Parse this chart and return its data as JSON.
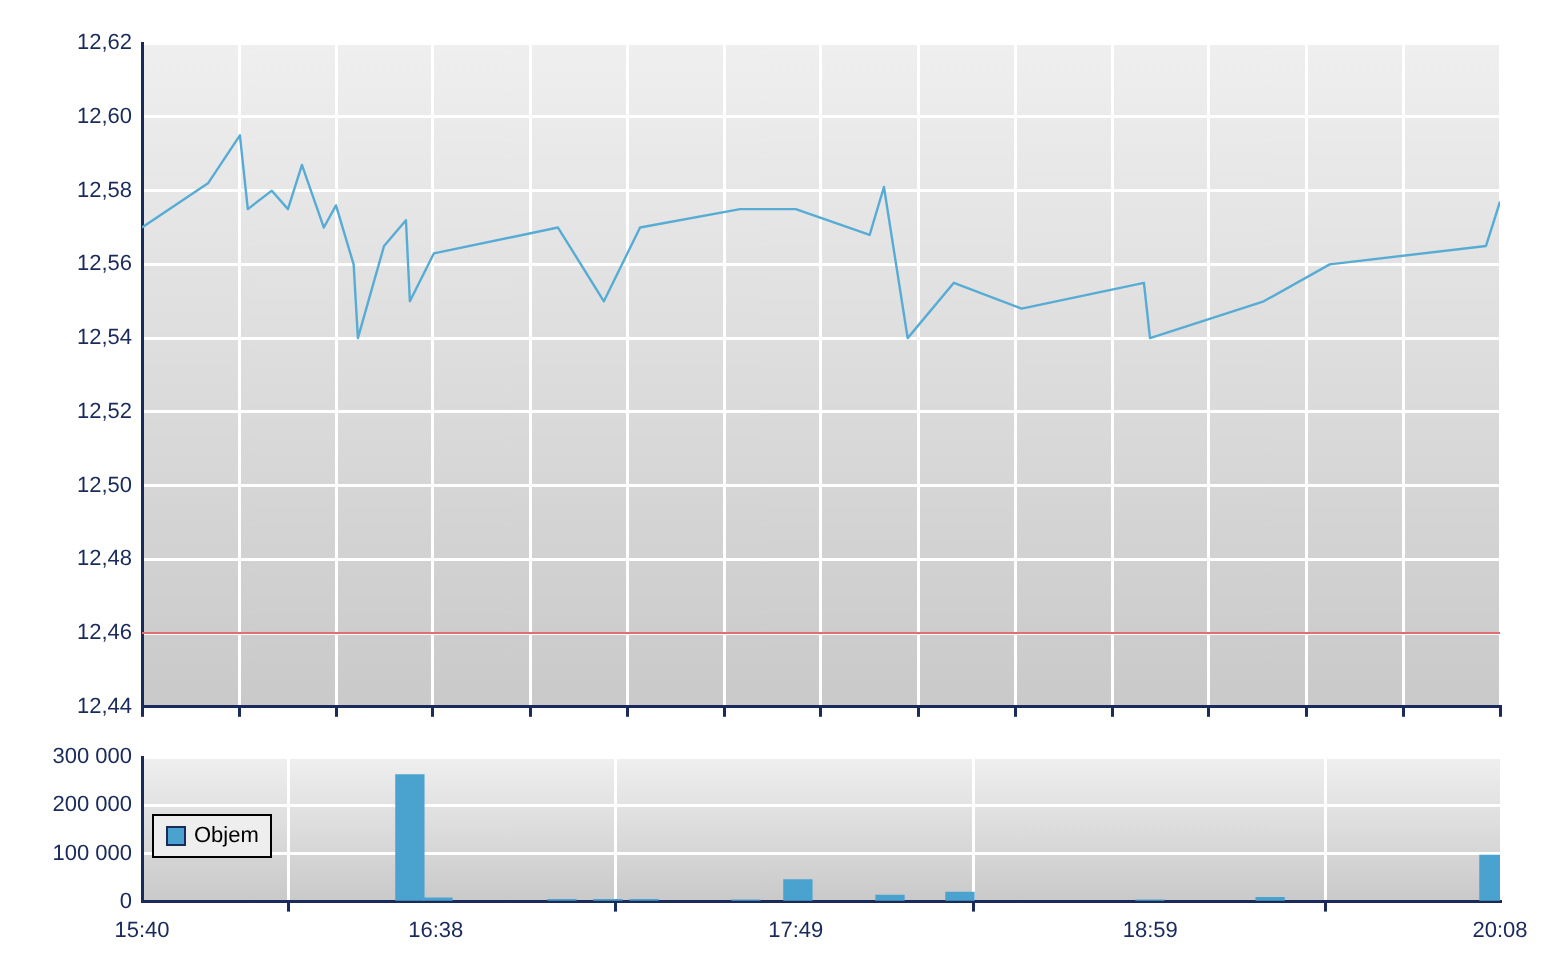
{
  "chart_data": [
    {
      "type": "line",
      "x": [
        15.667,
        15.884,
        15.989,
        16.015,
        16.094,
        16.147,
        16.193,
        16.265,
        16.305,
        16.363,
        16.377,
        16.463,
        16.535,
        16.548,
        16.627,
        17.035,
        17.186,
        17.305,
        17.634,
        17.817,
        18.06,
        18.107,
        18.185,
        18.337,
        18.56,
        18.962,
        18.982,
        19.356,
        19.573,
        20.087,
        20.133
      ],
      "series": [
        {
          "color": "#56acd4",
          "values": [
            12.57,
            12.582,
            12.595,
            12.575,
            12.58,
            12.575,
            12.587,
            12.57,
            12.576,
            12.56,
            12.54,
            12.565,
            12.572,
            12.55,
            12.563,
            12.57,
            12.55,
            12.57,
            12.575,
            12.575,
            12.568,
            12.581,
            12.54,
            12.555,
            12.548,
            12.555,
            12.54,
            12.55,
            12.56,
            12.565,
            12.577
          ]
        }
      ],
      "xlim": [
        15.667,
        20.133
      ],
      "xticks": [
        {
          "value": 15.667,
          "label": null
        },
        {
          "value": 15.986,
          "label": null
        },
        {
          "value": 16.305,
          "label": null
        },
        {
          "value": 16.624,
          "label": null
        },
        {
          "value": 16.943,
          "label": null
        },
        {
          "value": 17.262,
          "label": null
        },
        {
          "value": 17.581,
          "label": null
        },
        {
          "value": 17.9,
          "label": null
        },
        {
          "value": 18.219,
          "label": null
        },
        {
          "value": 18.538,
          "label": null
        },
        {
          "value": 18.857,
          "label": null
        },
        {
          "value": 19.176,
          "label": null
        },
        {
          "value": 19.495,
          "label": null
        },
        {
          "value": 19.814,
          "label": null
        },
        {
          "value": 20.133,
          "label": null
        }
      ],
      "ylim": [
        12.44,
        12.62
      ],
      "yticks": [
        {
          "value": 12.44,
          "label": "12,44"
        },
        {
          "value": 12.46,
          "label": "12,46"
        },
        {
          "value": 12.48,
          "label": "12,48"
        },
        {
          "value": 12.5,
          "label": "12,50"
        },
        {
          "value": 12.52,
          "label": "12,52"
        },
        {
          "value": 12.54,
          "label": "12,54"
        },
        {
          "value": 12.56,
          "label": "12,56"
        },
        {
          "value": 12.58,
          "label": "12,58"
        },
        {
          "value": 12.6,
          "label": "12,60"
        },
        {
          "value": 12.62,
          "label": "12,62"
        }
      ],
      "ref_lines": [
        {
          "axis": "y",
          "value": 12.46,
          "color": "#e07070"
        }
      ],
      "grid": true,
      "tick_labels": "y",
      "marker": "none"
    },
    {
      "type": "bar",
      "x": [
        16.548,
        16.64,
        17.048,
        17.199,
        17.318,
        17.653,
        17.824,
        18.127,
        18.357,
        18.982,
        19.377,
        20.113
      ],
      "series": [
        {
          "name": "Objem",
          "color": "#4aa3cf",
          "values": [
            263000,
            7000,
            4000,
            4000,
            4000,
            3000,
            45000,
            13000,
            19000,
            3000,
            8000,
            96000
          ]
        }
      ],
      "xlim": [
        15.667,
        20.133
      ],
      "xticks": [
        {
          "value": 15.667,
          "label": "15:40"
        },
        {
          "value": 16.633,
          "label": "16:38"
        },
        {
          "value": 17.817,
          "label": "17:49"
        },
        {
          "value": 18.983,
          "label": "18:59"
        },
        {
          "value": 20.133,
          "label": "20:08"
        }
      ],
      "ylim": [
        0,
        300000
      ],
      "yticks": [
        {
          "value": 0,
          "label": "0"
        },
        {
          "value": 100000,
          "label": "100 000"
        },
        {
          "value": 200000,
          "label": "200 000"
        },
        {
          "value": 300000,
          "label": "300 000"
        }
      ],
      "grid": true,
      "legend": "left"
    }
  ]
}
